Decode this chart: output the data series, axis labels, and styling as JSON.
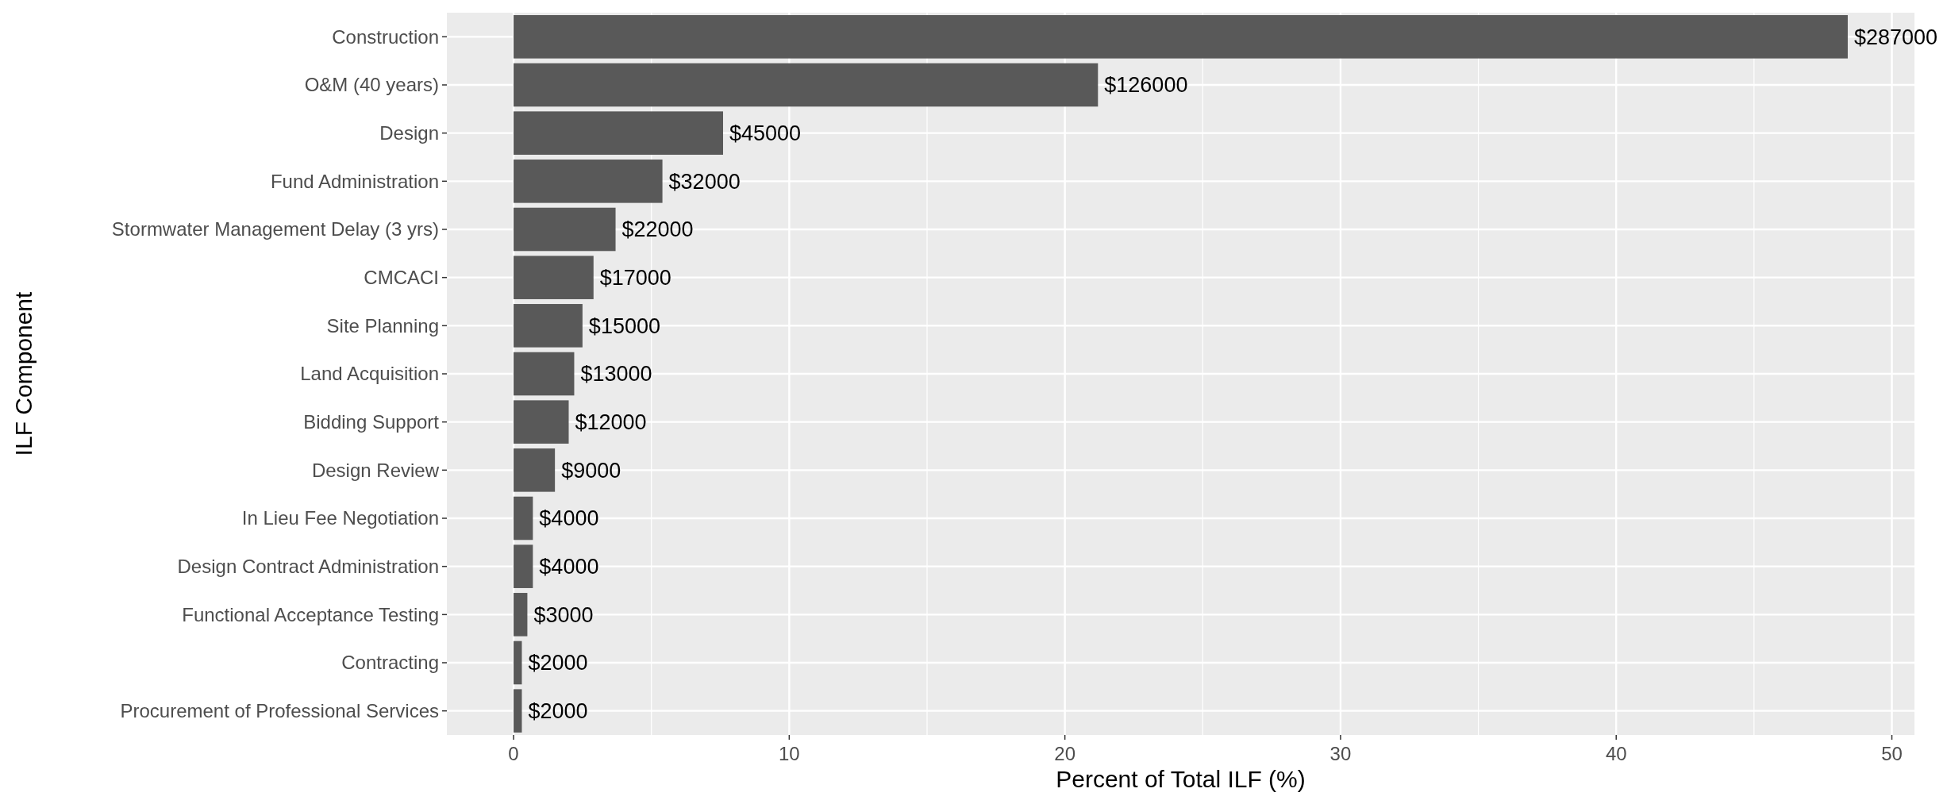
{
  "chart_data": {
    "type": "bar",
    "orientation": "horizontal",
    "xlabel": "Percent of Total ILF (%)",
    "ylabel": "ILF Component",
    "categories": [
      "Construction",
      "O&M (40 years)",
      "Design",
      "Fund Administration",
      "Stormwater Management Delay (3 yrs)",
      "CMCACI",
      "Site Planning",
      "Land Acquisition",
      "Bidding Support",
      "Design Review",
      "In Lieu Fee Negotiation",
      "Design Contract Administration",
      "Functional Acceptance Testing",
      "Contracting",
      "Procurement of Professional Services"
    ],
    "values": [
      48.4,
      21.2,
      7.6,
      5.4,
      3.7,
      2.9,
      2.5,
      2.2,
      2.0,
      1.5,
      0.7,
      0.7,
      0.5,
      0.3,
      0.3
    ],
    "annotations": [
      {
        "text": "$287000",
        "x": 48.4,
        "y": "Construction"
      },
      {
        "text": "$126000",
        "x": 21.2,
        "y": "O&M (40 years)"
      },
      {
        "text": "$45000",
        "x": 7.6,
        "y": "Design"
      },
      {
        "text": "$32000",
        "x": 5.4,
        "y": "Fund Administration"
      },
      {
        "text": "$22000",
        "x": 3.7,
        "y": "Stormwater Management Delay (3 yrs)"
      },
      {
        "text": "$17000",
        "x": 2.9,
        "y": "CMCACI"
      },
      {
        "text": "$15000",
        "x": 2.5,
        "y": "Site Planning"
      },
      {
        "text": "$13000",
        "x": 2.2,
        "y": "Land Acquisition"
      },
      {
        "text": "$12000",
        "x": 2.0,
        "y": "Bidding Support"
      },
      {
        "text": "$9000",
        "x": 1.5,
        "y": "Design Review"
      },
      {
        "text": "$4000",
        "x": 0.7,
        "y": "In Lieu Fee Negotiation"
      },
      {
        "text": "$4000",
        "x": 0.7,
        "y": "Design Contract Administration"
      },
      {
        "text": "$3000",
        "x": 0.5,
        "y": "Functional Acceptance Testing"
      },
      {
        "text": "$2000",
        "x": 0.3,
        "y": "Contracting"
      },
      {
        "text": "$2000",
        "x": 0.3,
        "y": "Procurement of Professional Services"
      }
    ],
    "color": "#595959",
    "xlim": [
      -2.42,
      50.82
    ],
    "xticks": [
      0,
      10,
      20,
      30,
      40,
      50
    ],
    "grid": true
  }
}
